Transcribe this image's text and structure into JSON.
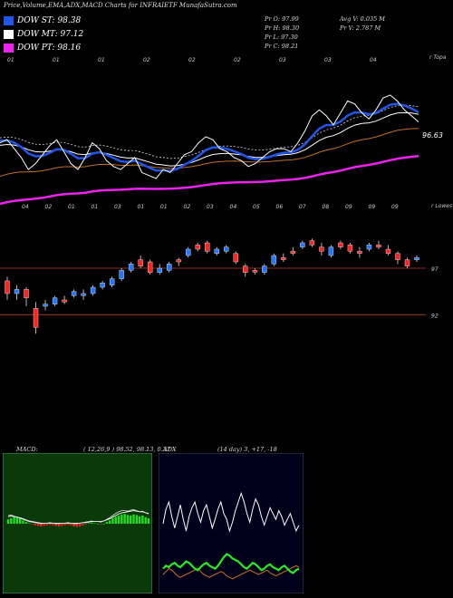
{
  "header": {
    "title": "Price,Volume,EMA,ADX,MACD Charts for INFRAIETF MunafaSutra.com"
  },
  "legend": [
    {
      "label": "DOW ST: 98.38",
      "color": "#2255ee"
    },
    {
      "label": "DOW MT: 97.12",
      "color": "#ffffff"
    },
    {
      "label": "DOW PT: 98.16",
      "color": "#ee22ee"
    }
  ],
  "stats": {
    "pr_o": "Pr   O: 97.99",
    "pr_h": "Pr   H: 98.30",
    "pr_l": "Pr   L: 97.30",
    "pr_c": "Pr   C: 98.21",
    "avg_v": "Avg V: 0.035 M",
    "pr_v": "Pr   V: 2.787 M"
  },
  "chart_data": [
    {
      "type": "line",
      "name": "price-ema",
      "price_label": "96.63",
      "top_tick_labels": [
        "01",
        "01",
        "01",
        "02",
        "02",
        "02",
        "03",
        "03",
        "04"
      ],
      "right_label": "r Topa",
      "series_colors": {
        "price": "#ffffff",
        "ema_short": "#2255ee",
        "ema_mid": "#ffffff",
        "ema_long": "#c07020",
        "ema_pt": "#ee22ee"
      },
      "price": [
        98.5,
        98.6,
        98.3,
        98.0,
        97.6,
        97.8,
        98.1,
        98.4,
        98.6,
        98.2,
        97.8,
        97.6,
        98.0,
        98.5,
        98.3,
        97.9,
        97.7,
        97.6,
        97.8,
        98.0,
        97.5,
        97.4,
        97.3,
        97.6,
        97.5,
        97.8,
        98.1,
        98.2,
        98.5,
        98.7,
        98.6,
        98.3,
        98.2,
        98.0,
        97.9,
        97.7,
        97.8,
        98.0,
        98.2,
        98.3,
        98.3,
        98.2,
        98.5,
        98.9,
        99.4,
        99.6,
        99.4,
        99.1,
        99.5,
        99.9,
        99.8,
        99.5,
        99.3,
        99.6,
        100.0,
        100.1,
        99.9,
        99.6,
        99.4,
        99.2
      ]
    },
    {
      "type": "candlestick",
      "name": "candles",
      "top_tick_labels": [
        "04",
        "02",
        "01",
        "01",
        "03",
        "01",
        "01",
        "02",
        "03",
        "04",
        "05",
        "06",
        "07",
        "08",
        "09",
        "09",
        "09"
      ],
      "right_label": "r Lowes",
      "level_labels": [
        "97",
        "92"
      ],
      "candles": [
        [
          96,
          96.4,
          94.2,
          94.8
        ],
        [
          94.8,
          95.6,
          94.2,
          95.2
        ],
        [
          95.2,
          95.4,
          93.6,
          94.4
        ],
        [
          93.4,
          94.0,
          91.0,
          91.6
        ],
        [
          93.6,
          94.2,
          93.2,
          93.8
        ],
        [
          93.8,
          94.6,
          93.6,
          94.4
        ],
        [
          94.2,
          94.6,
          93.8,
          94.0
        ],
        [
          94.6,
          95.2,
          94.4,
          95.0
        ],
        [
          94.6,
          95.2,
          94.2,
          94.8
        ],
        [
          94.8,
          95.6,
          94.6,
          95.4
        ],
        [
          95.4,
          96.0,
          95.2,
          95.8
        ],
        [
          95.6,
          96.4,
          95.4,
          96.2
        ],
        [
          96.2,
          97.2,
          96.0,
          97.0
        ],
        [
          97.0,
          97.8,
          96.8,
          97.6
        ],
        [
          98.0,
          98.4,
          97.2,
          97.4
        ],
        [
          97.8,
          98.0,
          96.6,
          96.8
        ],
        [
          96.8,
          97.6,
          96.6,
          97.2
        ],
        [
          97.0,
          97.8,
          96.8,
          97.6
        ],
        [
          98.0,
          98.2,
          97.4,
          97.8
        ],
        [
          98.4,
          99.2,
          98.2,
          99.0
        ],
        [
          99.4,
          99.6,
          98.8,
          99.0
        ],
        [
          99.6,
          99.8,
          98.6,
          98.8
        ],
        [
          98.6,
          99.2,
          98.4,
          99.0
        ],
        [
          98.8,
          99.4,
          98.6,
          99.2
        ],
        [
          98.6,
          98.8,
          97.6,
          97.8
        ],
        [
          97.4,
          97.6,
          96.4,
          96.8
        ],
        [
          97.0,
          97.2,
          96.6,
          96.9
        ],
        [
          96.8,
          97.6,
          96.6,
          97.4
        ],
        [
          97.6,
          98.6,
          97.4,
          98.4
        ],
        [
          98.2,
          98.6,
          97.8,
          98.0
        ],
        [
          98.8,
          99.2,
          98.4,
          98.6
        ],
        [
          99.2,
          99.8,
          99.0,
          99.6
        ],
        [
          99.8,
          100.0,
          99.2,
          99.4
        ],
        [
          99.2,
          99.6,
          98.4,
          98.8
        ],
        [
          98.4,
          99.4,
          98.2,
          99.2
        ],
        [
          99.6,
          99.8,
          99.0,
          99.2
        ],
        [
          99.4,
          99.6,
          98.6,
          98.8
        ],
        [
          98.8,
          99.2,
          98.2,
          98.6
        ],
        [
          99.0,
          99.6,
          98.8,
          99.4
        ],
        [
          99.4,
          99.8,
          99.0,
          99.2
        ],
        [
          99.0,
          99.4,
          98.4,
          98.6
        ],
        [
          98.6,
          98.8,
          97.6,
          98.0
        ],
        [
          98.0,
          98.2,
          97.2,
          97.4
        ],
        [
          98.0,
          98.4,
          97.8,
          98.2
        ]
      ]
    },
    {
      "type": "bar",
      "name": "macd",
      "label": "MACD:",
      "params": "( 12,26,9 ) 98.52,  98.13,  0.37",
      "bars": [
        0.8,
        1.0,
        1.2,
        1.3,
        1.0,
        0.6,
        0.3,
        0.1,
        -0.1,
        -0.3,
        -0.4,
        -0.5,
        -0.4,
        -0.3,
        -0.2,
        -0.3,
        -0.4,
        -0.5,
        -0.4,
        -0.3,
        -0.2,
        -0.3,
        -0.5,
        -0.6,
        -0.5,
        -0.3,
        -0.1,
        0.1,
        0.2,
        0.1,
        0.0,
        -0.1,
        0.0,
        0.3,
        0.6,
        1.0,
        1.3,
        1.5,
        1.7,
        1.8,
        1.6,
        1.5,
        1.7,
        1.6,
        1.4,
        1.5,
        1.2,
        1.0
      ],
      "macd_line": [
        1.5,
        1.6,
        1.4,
        1.2,
        1.0,
        0.8,
        0.6,
        0.4,
        0.3,
        0.2,
        0.1,
        0.0,
        0.1,
        0.1,
        0.2,
        0.1,
        0.0,
        0.0,
        0.1,
        0.1,
        0.2,
        0.1,
        0.0,
        0.0,
        0.1,
        0.2,
        0.3,
        0.4,
        0.5,
        0.4,
        0.4,
        0.3,
        0.5,
        0.8,
        1.1,
        1.5,
        1.9,
        2.2,
        2.4,
        2.4,
        2.3,
        2.5,
        2.6,
        2.4,
        2.2,
        2.3,
        2.0,
        1.8
      ],
      "signal_line": [
        1.3,
        1.4,
        1.3,
        1.2,
        1.1,
        0.9,
        0.7,
        0.5,
        0.4,
        0.3,
        0.2,
        0.1,
        0.1,
        0.1,
        0.1,
        0.1,
        0.1,
        0.1,
        0.1,
        0.1,
        0.1,
        0.1,
        0.1,
        0.1,
        0.1,
        0.2,
        0.2,
        0.3,
        0.4,
        0.4,
        0.4,
        0.4,
        0.5,
        0.7,
        0.9,
        1.2,
        1.5,
        1.8,
        2.0,
        2.1,
        2.2,
        2.3,
        2.4,
        2.3,
        2.2,
        2.2,
        2.0,
        1.9
      ]
    },
    {
      "type": "line",
      "name": "adx",
      "label": "ADX",
      "params": "(14  day) 3,  +17,  -18",
      "white": [
        45,
        55,
        60,
        50,
        42,
        50,
        58,
        48,
        40,
        50,
        56,
        60,
        52,
        46,
        54,
        58,
        50,
        42,
        48,
        55,
        60,
        52,
        48,
        40,
        46,
        54,
        60,
        66,
        60,
        52,
        46,
        55,
        62,
        58,
        50,
        44,
        50,
        56,
        52,
        48,
        54,
        50,
        44,
        48,
        52,
        46,
        40,
        44
      ],
      "green": [
        14,
        16,
        15,
        17,
        18,
        16,
        15,
        17,
        19,
        18,
        16,
        14,
        13,
        15,
        17,
        18,
        16,
        15,
        14,
        16,
        19,
        22,
        24,
        23,
        21,
        20,
        19,
        17,
        15,
        14,
        16,
        18,
        17,
        15,
        13,
        14,
        16,
        17,
        15,
        14,
        13,
        15,
        16,
        14,
        12,
        11,
        13,
        14
      ],
      "orange": [
        10,
        12,
        14,
        13,
        11,
        9,
        8,
        9,
        10,
        11,
        12,
        13,
        14,
        12,
        10,
        9,
        8,
        9,
        10,
        11,
        12,
        11,
        9,
        8,
        7,
        8,
        9,
        10,
        11,
        12,
        13,
        12,
        11,
        10,
        11,
        12,
        13,
        11,
        10,
        9,
        10,
        11,
        12,
        13,
        14,
        15,
        16,
        15
      ]
    }
  ]
}
